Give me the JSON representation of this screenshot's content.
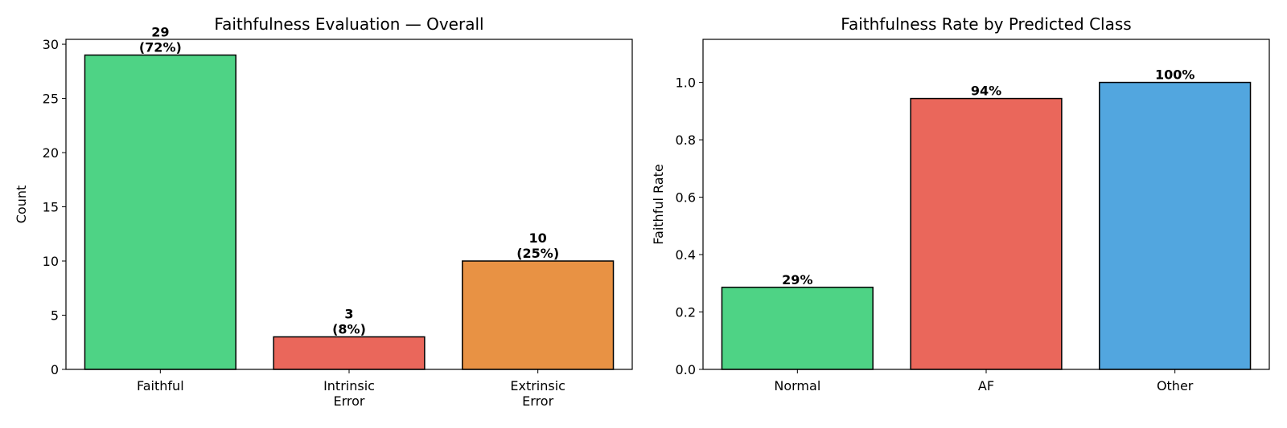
{
  "chart_data": [
    {
      "type": "bar",
      "title": "Faithfulness Evaluation — Overall",
      "xlabel": "",
      "ylabel": "Count",
      "categories": [
        [
          "Faithful"
        ],
        [
          "Intrinsic",
          "Error"
        ],
        [
          "Extrinsic",
          "Error"
        ]
      ],
      "values": [
        29,
        3,
        10
      ],
      "bar_labels": [
        [
          "29",
          "(72%)"
        ],
        [
          "3",
          "(8%)"
        ],
        [
          "10",
          "(25%)"
        ]
      ],
      "colors": [
        "#4ed385",
        "#ea675b",
        "#e89244"
      ],
      "ylim": [
        0,
        30.45
      ],
      "yticks": [
        0,
        5,
        10,
        15,
        20,
        25,
        30
      ],
      "ytick_labels": [
        "0",
        "5",
        "10",
        "15",
        "20",
        "25",
        "30"
      ],
      "grid": false
    },
    {
      "type": "bar",
      "title": "Faithfulness Rate by Predicted Class",
      "xlabel": "",
      "ylabel": "Faithful Rate",
      "categories": [
        [
          "Normal"
        ],
        [
          "AF"
        ],
        [
          "Other"
        ]
      ],
      "values": [
        0.286,
        0.944,
        1.0
      ],
      "bar_labels": [
        [
          "29%"
        ],
        [
          "94%"
        ],
        [
          "100%"
        ]
      ],
      "colors": [
        "#4ed385",
        "#ea675b",
        "#52a6df"
      ],
      "ylim": [
        0,
        1.15
      ],
      "yticks": [
        0,
        0.2,
        0.4,
        0.6,
        0.8,
        1.0
      ],
      "ytick_labels": [
        "0.0",
        "0.2",
        "0.4",
        "0.6",
        "0.8",
        "1.0"
      ],
      "grid": false
    }
  ]
}
